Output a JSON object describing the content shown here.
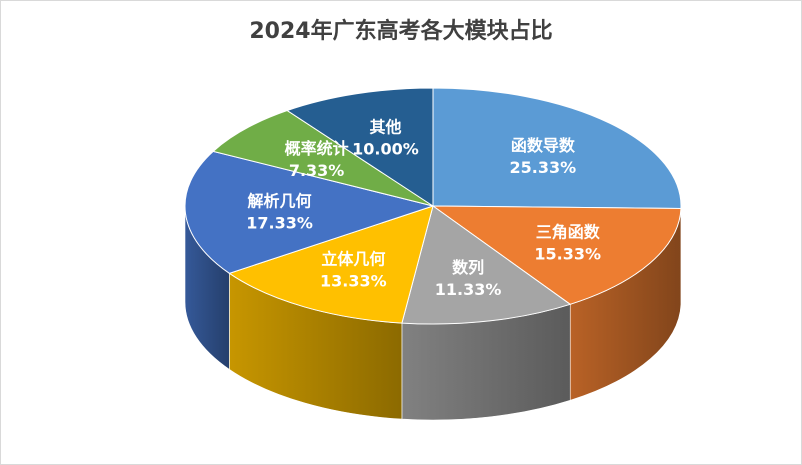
{
  "chart_data": {
    "type": "pie",
    "title": "2024年广东高考各大模块占比",
    "slices": [
      {
        "name": "函数导数",
        "value": 25.33,
        "label": "25.33%",
        "color": "#5B9BD5"
      },
      {
        "name": "三角函数",
        "value": 15.33,
        "label": "15.33%",
        "color": "#ED7D31"
      },
      {
        "name": "数列",
        "value": 11.33,
        "label": "11.33%",
        "color": "#A5A5A5"
      },
      {
        "name": "立体几何",
        "value": 13.33,
        "label": "13.33%",
        "color": "#FFC000"
      },
      {
        "name": "解析几何",
        "value": 17.33,
        "label": "17.33%",
        "color": "#4472C4"
      },
      {
        "name": "概率统计",
        "value": 7.33,
        "label": "7.33%",
        "color": "#70AD47"
      },
      {
        "name": "其他",
        "value": 10.0,
        "label": "10.00%",
        "color": "#255E91"
      }
    ],
    "legend": "none",
    "style": "3d-pie"
  }
}
